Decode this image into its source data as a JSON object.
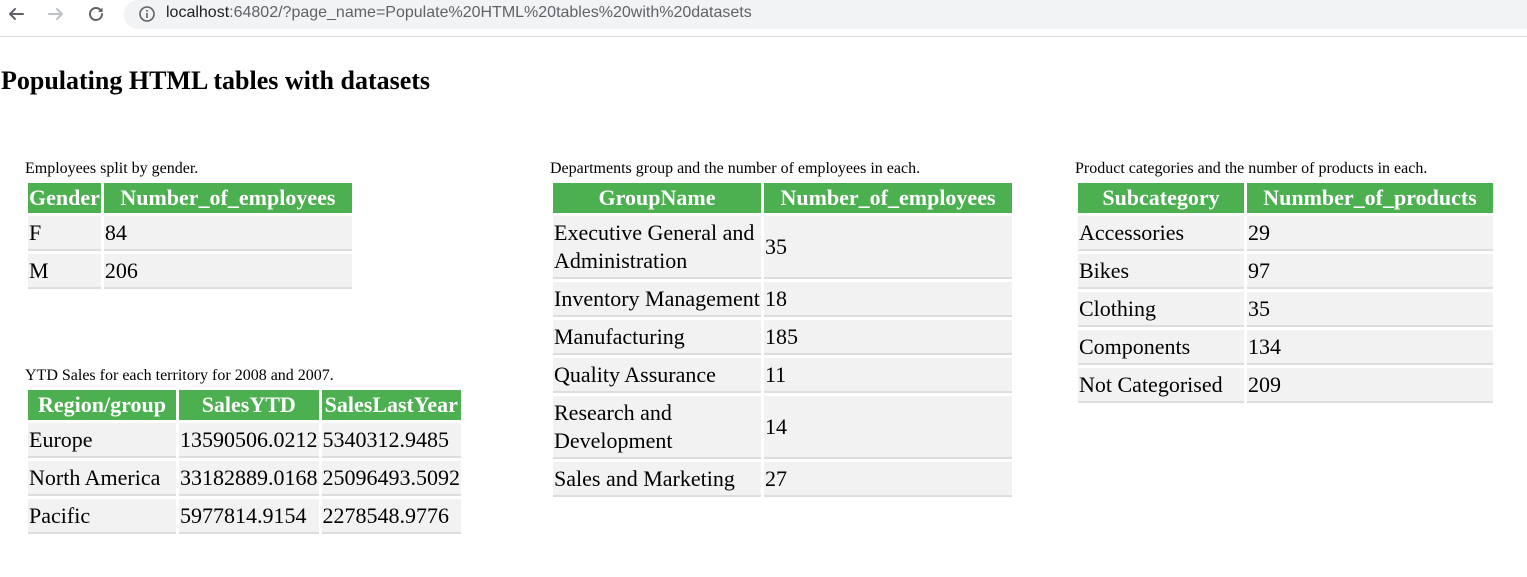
{
  "browser": {
    "url_host": "localhost",
    "url_rest": ":64802/?page_name=Populate%20HTML%20tables%20with%20datasets"
  },
  "page": {
    "title": "Populating HTML tables with datasets"
  },
  "tables": {
    "gender": {
      "caption": "Employees split by gender.",
      "headers": [
        "Gender",
        "Number_of_employees"
      ],
      "rows": [
        [
          "F",
          "84"
        ],
        [
          "M",
          "206"
        ]
      ]
    },
    "sales": {
      "caption": "YTD Sales for each territory for 2008 and 2007.",
      "headers": [
        "Region/group",
        "SalesYTD",
        "SalesLastYear"
      ],
      "rows": [
        [
          "Europe",
          "13590506.0212",
          "5340312.9485"
        ],
        [
          "North America",
          "33182889.0168",
          "25096493.5092"
        ],
        [
          "Pacific",
          "5977814.9154",
          "2278548.9776"
        ]
      ]
    },
    "departments": {
      "caption": "Departments group and the number of employees in each.",
      "headers": [
        "GroupName",
        "Number_of_employees"
      ],
      "rows": [
        [
          "Executive General and Administration",
          "35"
        ],
        [
          "Inventory Management",
          "18"
        ],
        [
          "Manufacturing",
          "185"
        ],
        [
          "Quality Assurance",
          "11"
        ],
        [
          "Research and Development",
          "14"
        ],
        [
          "Sales and Marketing",
          "27"
        ]
      ]
    },
    "products": {
      "caption": "Product categories and the number of products in each.",
      "headers": [
        "Subcategory",
        "Nunmber_of_products"
      ],
      "rows": [
        [
          "Accessories",
          "29"
        ],
        [
          "Bikes",
          "97"
        ],
        [
          "Clothing",
          "35"
        ],
        [
          "Components",
          "134"
        ],
        [
          "Not Categorised",
          "209"
        ]
      ]
    }
  },
  "colors": {
    "header_bg": "#4caf50",
    "cell_bg": "#f2f2f2",
    "cell_border": "#dddddd"
  },
  "icons": [
    "back-arrow-icon",
    "forward-arrow-icon",
    "reload-icon",
    "info-icon"
  ]
}
